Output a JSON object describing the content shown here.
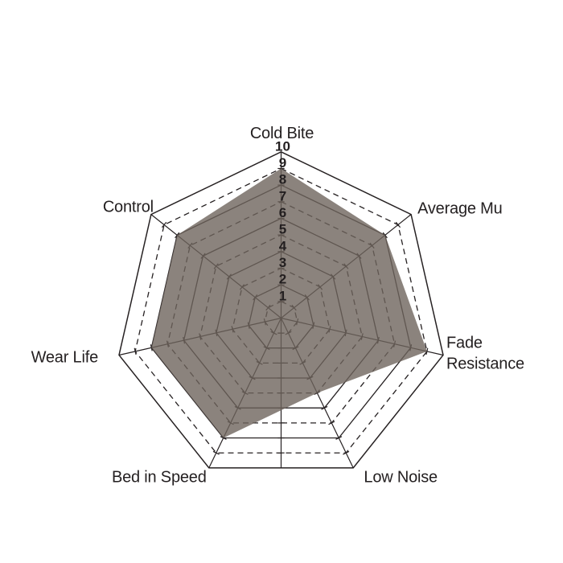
{
  "chart_data": {
    "type": "radar",
    "title": "",
    "categories": [
      "Cold Bite",
      "Average Mu",
      "Fade Resistance",
      "Low Noise",
      "Bed in Speed",
      "Wear Life",
      "Control"
    ],
    "values": [
      9,
      8,
      9,
      5,
      8,
      8,
      8
    ],
    "scale": {
      "min": 1,
      "max": 10,
      "tick_labels": [
        "1",
        "2",
        "3",
        "4",
        "5",
        "6",
        "7",
        "8",
        "9",
        "10"
      ]
    },
    "rings": 10,
    "grid": {
      "style": "heptagonal",
      "even_rings": "solid",
      "odd_rings": "dashed",
      "scale_axis": "vertical-through-center"
    },
    "legend_position": "none",
    "colors": {
      "fill": "#6e645c",
      "fill_opacity": 0.8,
      "line": "#262122",
      "text": "#231f20",
      "background": "#ffffff"
    }
  }
}
